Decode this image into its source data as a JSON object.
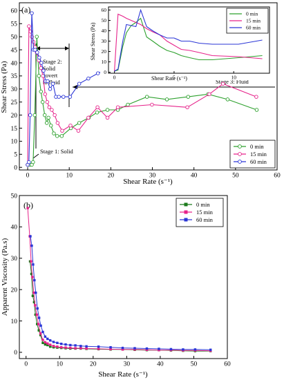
{
  "chart_data": [
    {
      "type": "line",
      "panel_label": "(a)",
      "xlabel": "Shear Rate (s⁻¹)",
      "ylabel": "Shear Stress (Pa)",
      "xlim": [
        -2,
        60
      ],
      "ylim": [
        -1,
        63
      ],
      "xticks": [
        0,
        10,
        20,
        30,
        40,
        50,
        60
      ],
      "yticks": [
        0,
        5,
        10,
        15,
        20,
        25,
        30,
        35,
        40,
        45,
        50,
        55,
        60
      ],
      "grid": false,
      "legend_position": "bottom-right",
      "series": [
        {
          "name": "0 min",
          "color": "#2ca02c",
          "marker": "circle-open",
          "x": [
            0,
            0.3,
            0.6,
            1.0,
            1.3,
            1.7,
            2.2,
            2.7,
            3.2,
            3.6,
            4.1,
            4.6,
            5.0,
            5.6,
            6.3,
            7.1,
            8.2,
            10.4,
            12.4,
            14.7,
            16.7,
            19.2,
            21.7,
            24.1,
            28.7,
            33.5,
            38.6,
            43.4,
            48.1,
            55.1
          ],
          "y": [
            1,
            1,
            1,
            1,
            2,
            20,
            50,
            35,
            29,
            25,
            20,
            17,
            19,
            16,
            13,
            12,
            12,
            15,
            17,
            19,
            21,
            22,
            22,
            24,
            27,
            26,
            27,
            28,
            26,
            22
          ]
        },
        {
          "name": "15 min",
          "color": "#e6228a",
          "marker": "circle-open",
          "x": [
            0,
            0.3,
            0.7,
            1.0,
            1.4,
            1.8,
            2.2,
            2.7,
            3.2,
            3.7,
            4.2,
            4.7,
            5.2,
            5.8,
            6.5,
            7.2,
            8.3,
            10.3,
            12.2,
            14.6,
            16.8,
            19.2,
            21.7,
            29.9,
            38.4,
            43.7,
            47.0,
            55.0
          ],
          "y": [
            1,
            54,
            52,
            50,
            48,
            46,
            44,
            41,
            38,
            35,
            28,
            25,
            23,
            22,
            20,
            17,
            14,
            16,
            14,
            19,
            23,
            19,
            23,
            24,
            23,
            28,
            32,
            27
          ]
        },
        {
          "name": "60 min",
          "color": "#2a35d6",
          "marker": "circle-open",
          "x": [
            0,
            0.3,
            0.6,
            1.0,
            1.4,
            1.8,
            2.3,
            2.8,
            3.3,
            3.8,
            4.3,
            4.8,
            5.4,
            6.1,
            6.8,
            7.5,
            8.6,
            10.2,
            12.4,
            14.6,
            16.9,
            19.3,
            21.7,
            26.8,
            31.0,
            38.5,
            43.4,
            50.2,
            55.0
          ],
          "y": [
            1,
            2,
            20,
            59,
            45,
            45,
            44,
            42,
            40,
            37,
            33,
            33,
            30,
            32,
            27,
            27,
            27,
            27,
            32,
            34,
            36,
            38,
            39,
            39,
            39,
            40,
            41,
            40,
            39
          ]
        }
      ],
      "annotations": [
        {
          "text": "Stage 1: Solid"
        },
        {
          "lines": [
            "Stage 2:",
            "Solid",
            "covert",
            "to fluid"
          ]
        },
        {
          "text": "Stage 3: Fluid"
        }
      ],
      "inset": {
        "xlabel": "Shear Rate (s⁻¹)",
        "ylabel": "Shear Stress (Pa)",
        "xlim": [
          -0.5,
          13
        ],
        "ylim": [
          -1,
          63
        ],
        "xticks": [
          0,
          5,
          10
        ],
        "yticks": [
          0,
          10,
          20,
          30,
          40,
          50,
          60
        ],
        "legend_position": "top-right",
        "series": [
          {
            "name": "0 min",
            "color": "#2ca02c",
            "x": [
              0,
              0.3,
              0.7,
              1.0,
              1.4,
              1.8,
              2.2,
              2.7,
              3.2,
              3.8,
              4.4,
              5.0,
              5.6,
              6.3,
              7.1,
              8.2,
              10.4,
              12.4
            ],
            "y": [
              1,
              2,
              25,
              38,
              45,
              48,
              52,
              34,
              30,
              25,
              21,
              19,
              16,
              14,
              12,
              12,
              14,
              16
            ]
          },
          {
            "name": "15 min",
            "color": "#e6228a",
            "x": [
              0,
              0.3,
              0.7,
              1.0,
              1.4,
              1.8,
              2.2,
              2.7,
              3.2,
              3.8,
              4.4,
              5.0,
              5.6,
              6.3,
              7.1,
              8.2,
              10.4,
              12.4
            ],
            "y": [
              1,
              56,
              54,
              52,
              50,
              48,
              46,
              42,
              39,
              36,
              30,
              26,
              22,
              21,
              19,
              16,
              15,
              13
            ]
          },
          {
            "name": "60 min",
            "color": "#2a35d6",
            "x": [
              0,
              0.3,
              0.7,
              1.0,
              1.4,
              1.8,
              2.2,
              2.7,
              3.2,
              3.8,
              4.4,
              5.0,
              5.6,
              6.3,
              7.1,
              8.2,
              10.4,
              12.4
            ],
            "y": [
              1,
              3,
              30,
              46,
              45,
              44,
              60,
              44,
              40,
              36,
              33,
              33,
              30,
              30,
              28,
              27,
              27,
              31
            ]
          }
        ]
      }
    },
    {
      "type": "line",
      "panel_label": "(b)",
      "xlabel": "Shear Rate (s⁻¹)",
      "ylabel": "Apparent Viscosity (Pa.s)",
      "xlim": [
        -2,
        60
      ],
      "ylim": [
        -2,
        50
      ],
      "xticks": [
        0,
        10,
        20,
        30,
        40,
        50,
        60
      ],
      "yticks": [
        0,
        10,
        20,
        30,
        40,
        50
      ],
      "grid": false,
      "legend_position": "top-right",
      "series": [
        {
          "name": "0 min",
          "color": "#1b7a1b",
          "marker": "square-filled",
          "x": [
            1.2,
            1.6,
            2.0,
            2.4,
            2.8,
            3.3,
            3.8,
            4.3,
            5.0,
            5.7,
            6.4,
            7.2,
            8.2,
            9.3,
            10.5,
            11.8,
            13.2,
            14.7,
            16.3,
            18.0,
            21.6,
            25.2,
            28.8,
            32.4,
            36.0,
            39.6,
            43.2,
            46.8,
            50.4,
            55.0
          ],
          "y": [
            29,
            25,
            18,
            16,
            12,
            9,
            7,
            5.5,
            3,
            2.5,
            2.3,
            1.8,
            1.6,
            1.5,
            1.4,
            1.3,
            1.2,
            1.2,
            1.2,
            1.1,
            1.0,
            0.9,
            0.9,
            0.8,
            0.7,
            0.7,
            0.6,
            0.5,
            0.4,
            0.4
          ]
        },
        {
          "name": "15 min",
          "color": "#e6228a",
          "marker": "square-filled",
          "x": [
            0.5,
            1.1,
            1.5,
            1.9,
            2.3,
            2.7,
            3.2,
            3.7,
            4.3,
            5.0,
            5.7,
            6.4,
            7.2,
            8.2,
            9.3,
            10.5,
            11.8,
            13.2,
            14.7,
            16.3,
            18.0,
            21.6,
            25.2,
            28.8,
            32.4,
            36.0,
            39.6,
            43.2,
            46.8,
            50.4,
            55.0
          ],
          "y": [
            46,
            37,
            29,
            24,
            19,
            15,
            12,
            9,
            6,
            4,
            3.2,
            2.8,
            2.4,
            2.0,
            1.8,
            1.6,
            1.5,
            1.4,
            1.3,
            1.3,
            1.2,
            1.1,
            1.0,
            0.9,
            0.9,
            0.8,
            0.7,
            0.7,
            0.6,
            0.6,
            0.5
          ]
        },
        {
          "name": "60 min",
          "color": "#2a35d6",
          "marker": "square-filled",
          "x": [
            1.3,
            1.7,
            2.1,
            2.5,
            2.9,
            3.4,
            3.9,
            4.4,
            5.0,
            5.7,
            6.4,
            7.2,
            8.2,
            9.3,
            10.5,
            11.8,
            13.2,
            14.7,
            16.3,
            18.0,
            21.6,
            25.2,
            28.8,
            32.4,
            36.0,
            39.6,
            43.2,
            46.8,
            50.4,
            55.0
          ],
          "y": [
            37,
            34,
            28,
            23,
            19,
            14,
            11,
            8.5,
            6.5,
            5,
            4.3,
            3.8,
            3.3,
            3.0,
            2.7,
            2.5,
            2.3,
            2.2,
            2.0,
            1.9,
            1.8,
            1.6,
            1.4,
            1.3,
            1.2,
            1.1,
            1.0,
            0.9,
            0.9,
            0.8
          ]
        }
      ]
    }
  ]
}
